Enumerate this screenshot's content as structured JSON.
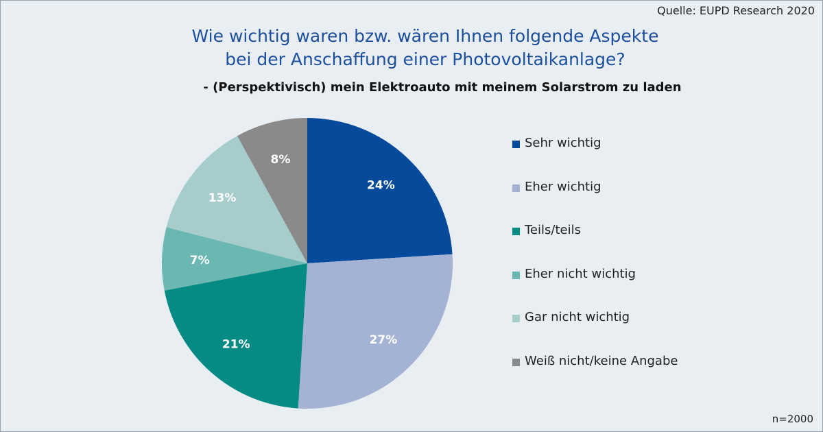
{
  "source": "Quelle: EUPD Research 2020",
  "title_lines": [
    "Wie wichtig waren bzw. wären Ihnen folgende Aspekte",
    "bei der Anschaffung einer Photovoltaikanlage?"
  ],
  "subtitle": "- (Perspektivisch) mein Elektroauto mit meinem Solarstrom zu laden",
  "footnote": "n=2000",
  "chart_data": {
    "type": "pie",
    "title": "Wie wichtig waren bzw. wären Ihnen folgende Aspekte bei der Anschaffung einer Photovoltaikanlage?",
    "subtitle": "- (Perspektivisch) mein Elektroauto mit meinem Solarstrom zu laden",
    "start": "12 o'clock",
    "direction": "clockwise",
    "legend_position": "right",
    "slices": [
      {
        "label": "Sehr wichtig",
        "value": 24,
        "value_label": "24%",
        "color": "#064a9c"
      },
      {
        "label": "Eher wichtig",
        "value": 27,
        "value_label": "27%",
        "color": "#a4b3d3"
      },
      {
        "label": "Teils/teils",
        "value": 21,
        "value_label": "21%",
        "color": "#068a84"
      },
      {
        "label": "Eher nicht wichtig",
        "value": 7,
        "value_label": "7%",
        "color": "#6bb7b2"
      },
      {
        "label": "Gar nicht wichtig",
        "value": 13,
        "value_label": "13%",
        "color": "#a7cccc"
      },
      {
        "label": "Weiß nicht/keine Angabe",
        "value": 8,
        "value_label": "8%",
        "color": "#8a8a8a"
      }
    ]
  }
}
